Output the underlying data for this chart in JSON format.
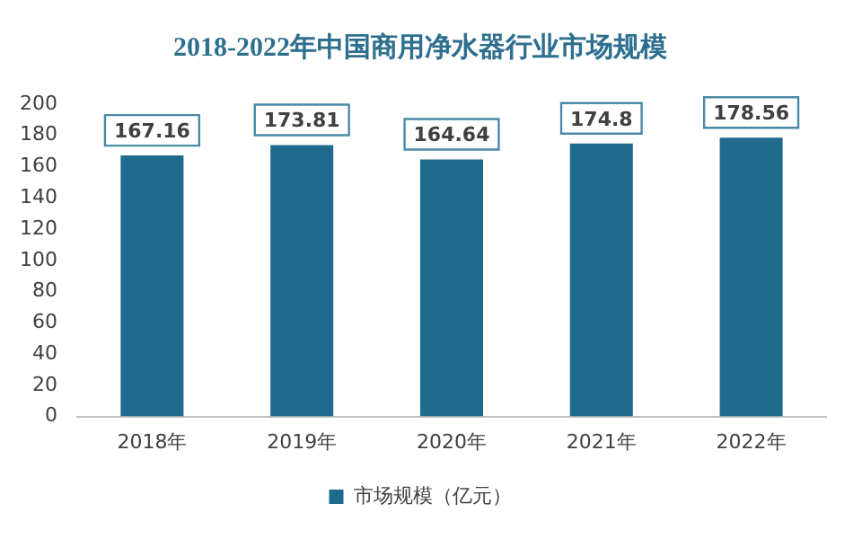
{
  "chart_data": {
    "type": "bar",
    "title": "2018-2022年中国商用净水器行业市场规模",
    "categories": [
      "2018年",
      "2019年",
      "2020年",
      "2021年",
      "2022年"
    ],
    "series": [
      {
        "name": "市场规模（亿元）",
        "color": "#1f6b8e",
        "values": [
          167.16,
          173.81,
          164.64,
          174.8,
          178.56
        ]
      }
    ],
    "ylim": [
      0,
      200
    ],
    "yticks": [
      0,
      20,
      40,
      60,
      80,
      100,
      120,
      140,
      160,
      180,
      200
    ],
    "data_labels": true,
    "grid": false,
    "legend": "bottom"
  }
}
